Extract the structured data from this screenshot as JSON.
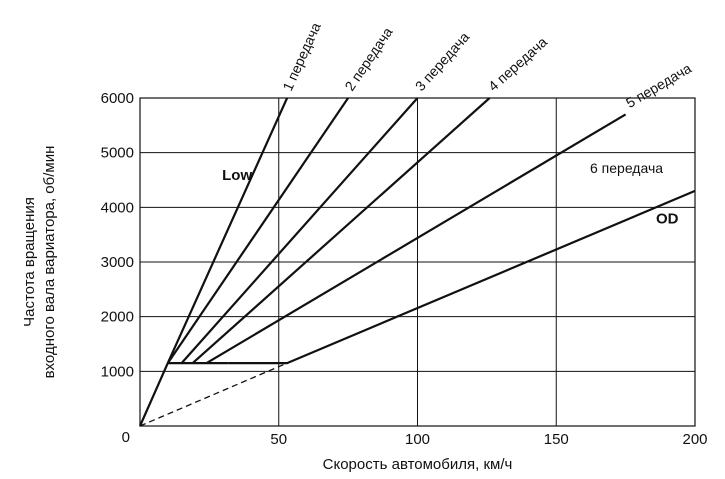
{
  "chart_data": {
    "type": "line",
    "xlabel": "Скорость автомобиля, км/ч",
    "ylabel_lines": [
      "Частота вращения",
      "входного вала вариатора, об/мин"
    ],
    "xlim": [
      0,
      200
    ],
    "ylim": [
      0,
      6000
    ],
    "xticks": [
      0,
      50,
      100,
      150,
      200
    ],
    "yticks": [
      1000,
      2000,
      3000,
      4000,
      5000,
      6000
    ],
    "origin_label": "0",
    "grid": true,
    "series": [
      {
        "name": "1 передача",
        "style": "solid",
        "points": [
          [
            0,
            0
          ],
          [
            10,
            1150
          ],
          [
            53,
            6000
          ]
        ]
      },
      {
        "name": "2 передача",
        "style": "solid",
        "points": [
          [
            10,
            1150
          ],
          [
            75,
            6000
          ]
        ]
      },
      {
        "name": "3 передача",
        "style": "solid",
        "points": [
          [
            15,
            1150
          ],
          [
            100,
            6000
          ]
        ]
      },
      {
        "name": "4 передача",
        "style": "solid",
        "points": [
          [
            19,
            1150
          ],
          [
            126,
            6000
          ]
        ]
      },
      {
        "name": "5 передача",
        "style": "solid",
        "points": [
          [
            24,
            1150
          ],
          [
            175,
            5700
          ]
        ]
      },
      {
        "name": "6 передача",
        "style": "solid",
        "points": [
          [
            32,
            1150
          ],
          [
            53,
            1150
          ],
          [
            200,
            4300
          ]
        ]
      },
      {
        "name": "",
        "style": "dashed",
        "points": [
          [
            0,
            0
          ],
          [
            53,
            1150
          ]
        ]
      },
      {
        "name": "",
        "style": "dashed",
        "points": [
          [
            0,
            0
          ],
          [
            10,
            1150
          ]
        ]
      },
      {
        "name": "",
        "style": "solid",
        "points": [
          [
            10,
            1150
          ],
          [
            32,
            1150
          ]
        ]
      }
    ],
    "annotations": [
      {
        "text": "Low",
        "x": 35,
        "y": 4500,
        "bold": true
      },
      {
        "text": "OD",
        "x": 190,
        "y": 3700,
        "bold": true
      }
    ]
  }
}
